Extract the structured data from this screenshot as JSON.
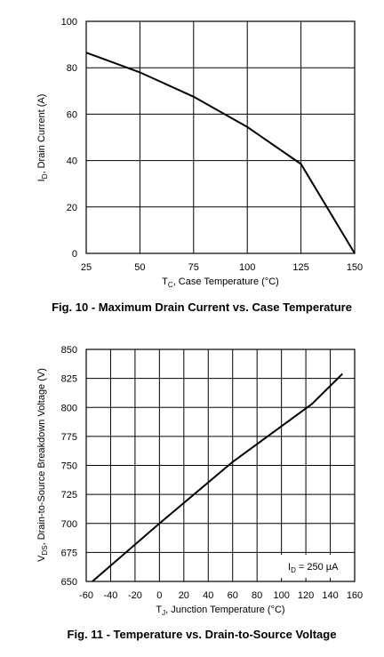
{
  "chart_data": [
    {
      "type": "line",
      "caption": "Fig. 10 - Maximum Drain Current vs. Case Temperature",
      "xlabel": {
        "main": "T",
        "sub": "C",
        "rest": ", Case Temperature (°C)"
      },
      "ylabel": {
        "main": "I",
        "sub": "D",
        "rest": ", Drain Current (A)"
      },
      "xlim": [
        25,
        150
      ],
      "ylim": [
        0,
        100
      ],
      "xticks": [
        25,
        50,
        75,
        100,
        125,
        150
      ],
      "yticks": [
        0,
        20,
        40,
        60,
        80,
        100
      ],
      "grid": true,
      "x": [
        25,
        50,
        75,
        100,
        125,
        150
      ],
      "y": [
        86.5,
        78,
        67.5,
        54.5,
        38.5,
        0
      ]
    },
    {
      "type": "line",
      "caption": "Fig. 11 - Temperature vs. Drain-to-Source Voltage",
      "xlabel": {
        "main": "T",
        "sub": "J",
        "rest": ", Junction Temperature (°C)"
      },
      "ylabel": {
        "main": "V",
        "sub": "DS",
        "rest": ", Drain-to-Source Breakdown Voltage (V)"
      },
      "xlim": [
        -60,
        160
      ],
      "ylim": [
        650,
        850
      ],
      "xticks": [
        -60,
        -40,
        -20,
        0,
        20,
        40,
        60,
        80,
        100,
        120,
        140,
        160
      ],
      "yticks": [
        650,
        675,
        700,
        725,
        750,
        775,
        800,
        825,
        850
      ],
      "grid": true,
      "x": [
        -55,
        0,
        60,
        125,
        150
      ],
      "y": [
        650,
        700,
        753,
        803,
        829
      ],
      "annotation": {
        "main": "I",
        "sub": "D",
        "rest": " = 250 µA"
      }
    }
  ]
}
